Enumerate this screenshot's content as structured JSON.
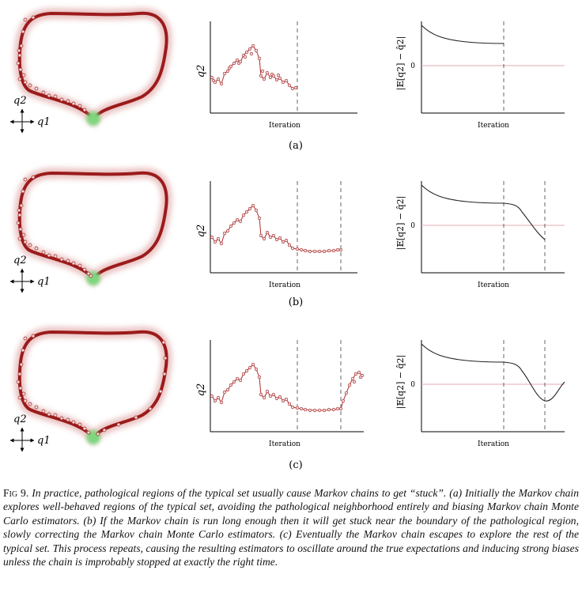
{
  "panels": [
    {
      "id": "a",
      "sublabel": "(a)",
      "q2_axis": "q2",
      "q1_axis": "q1",
      "trace_ylabel": "q2",
      "trace_xlabel": "Iteration",
      "estimator_ylabel": "|𝔼[q2] − q̂2|",
      "estimator_xlabel": "Iteration",
      "zero_tick": "0",
      "description": "chain explores well-behaved region only"
    },
    {
      "id": "b",
      "sublabel": "(b)",
      "q2_axis": "q2",
      "q1_axis": "q1",
      "trace_ylabel": "q2",
      "trace_xlabel": "Iteration",
      "estimator_ylabel": "|𝔼[q2] − q̂2|",
      "estimator_xlabel": "Iteration",
      "zero_tick": "0",
      "description": "chain gets stuck near pathological region"
    },
    {
      "id": "c",
      "sublabel": "(c)",
      "q2_axis": "q2",
      "q1_axis": "q1",
      "trace_ylabel": "q2",
      "trace_xlabel": "Iteration",
      "estimator_ylabel": "|𝔼[q2] − q̂2|",
      "estimator_xlabel": "Iteration",
      "zero_tick": "0",
      "description": "chain escapes and explores rest of typical set"
    }
  ],
  "caption": {
    "label": "Fig 9.",
    "text": "In practice, pathological regions of the typical set usually cause Markov chains to get “stuck”. (a) Initially the Markov chain explores well-behaved regions of the typical set, avoiding the pathological neighborhood entirely and biasing Markov chain Monte Carlo estimators. (b) If the Markov chain is run long enough then it will get stuck near the boundary of the pathological region, slowly correcting the Markov chain Monte Carlo estimators. (c) Eventually the Markov chain escapes to explore the rest of the typical set. This process repeats, causing the resulting estimators to oscillate around the true expectations and inducing strong biases unless the chain is improbably stopped at exactly the right time."
  },
  "colors": {
    "typical_set": "#9b1b1b",
    "pathology": "#7ed67e",
    "samples": "#f2dede",
    "sample_edge": "#a11c1c",
    "zero_line": "#e4aab0"
  }
}
